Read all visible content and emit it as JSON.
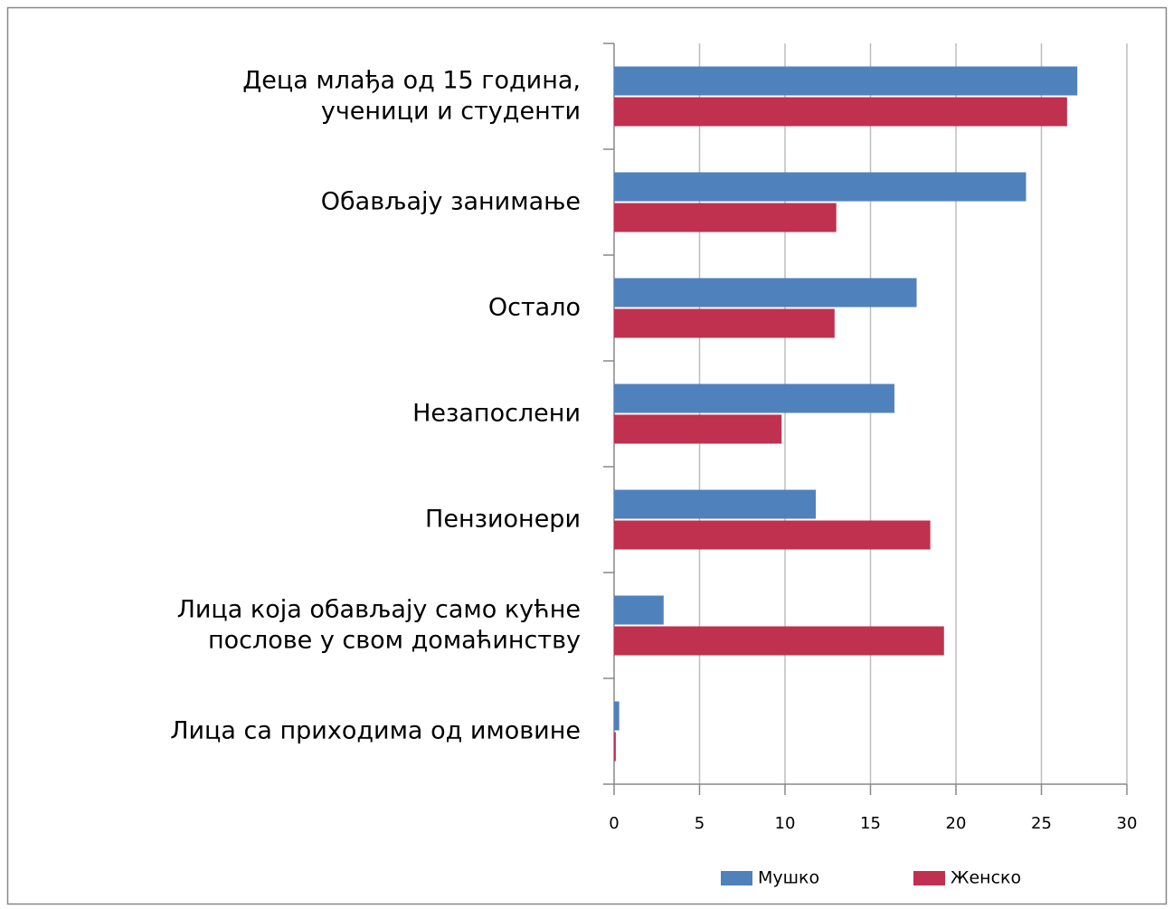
{
  "chart_data": {
    "type": "hbar",
    "categories": [
      [
        "Деца млађа од 15 година,",
        "ученици и студенти"
      ],
      [
        "Обављају занимање"
      ],
      [
        "Остало"
      ],
      [
        "Незапослени"
      ],
      [
        "Пензионери"
      ],
      [
        "Лица која обављају само кућне",
        "послове у свом домаћинству"
      ],
      [
        "Лица са приходима од имовине"
      ]
    ],
    "series": [
      {
        "name": "Мушко",
        "color": "#4f81bd",
        "values": [
          27.1,
          24.1,
          17.7,
          16.4,
          11.8,
          2.9,
          0.3
        ]
      },
      {
        "name": "Женско",
        "color": "#c0304f",
        "values": [
          26.5,
          13.0,
          12.9,
          9.8,
          18.5,
          19.3,
          0.1
        ]
      }
    ],
    "xlim": [
      0,
      30
    ],
    "xticks": [
      0,
      5,
      10,
      15,
      20,
      25,
      30
    ],
    "grid": true,
    "legend": "bottom"
  }
}
